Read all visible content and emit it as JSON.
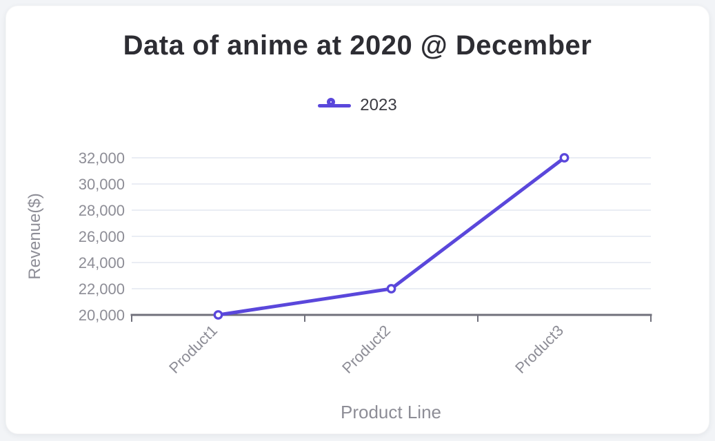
{
  "colors": {
    "accent": "#5a47db",
    "grid": "#e3e7f1",
    "axis": "#70707b",
    "tick_text": "#8d8d96",
    "title_text": "#2d2d33",
    "legend_text": "#3b3b42",
    "card_background": "#ffffff",
    "page_background": "#f2f4f7"
  },
  "chart_data": {
    "type": "line",
    "title": "Data of anime at 2020 @ December",
    "categories": [
      "Product1",
      "Product2",
      "Product3"
    ],
    "series": [
      {
        "name": "2023",
        "values": [
          20000,
          22000,
          32000
        ],
        "color": "#5a47db",
        "marker": "hollow-circle"
      }
    ],
    "xlabel": "Product Line",
    "ylabel": "Revenue($)",
    "ylim": [
      20000,
      32000
    ],
    "ytick_step": 2000,
    "ytick_labels": [
      "20,000",
      "22,000",
      "24,000",
      "26,000",
      "28,000",
      "30,000",
      "32,000"
    ],
    "grid": true,
    "legend_position": "top"
  }
}
